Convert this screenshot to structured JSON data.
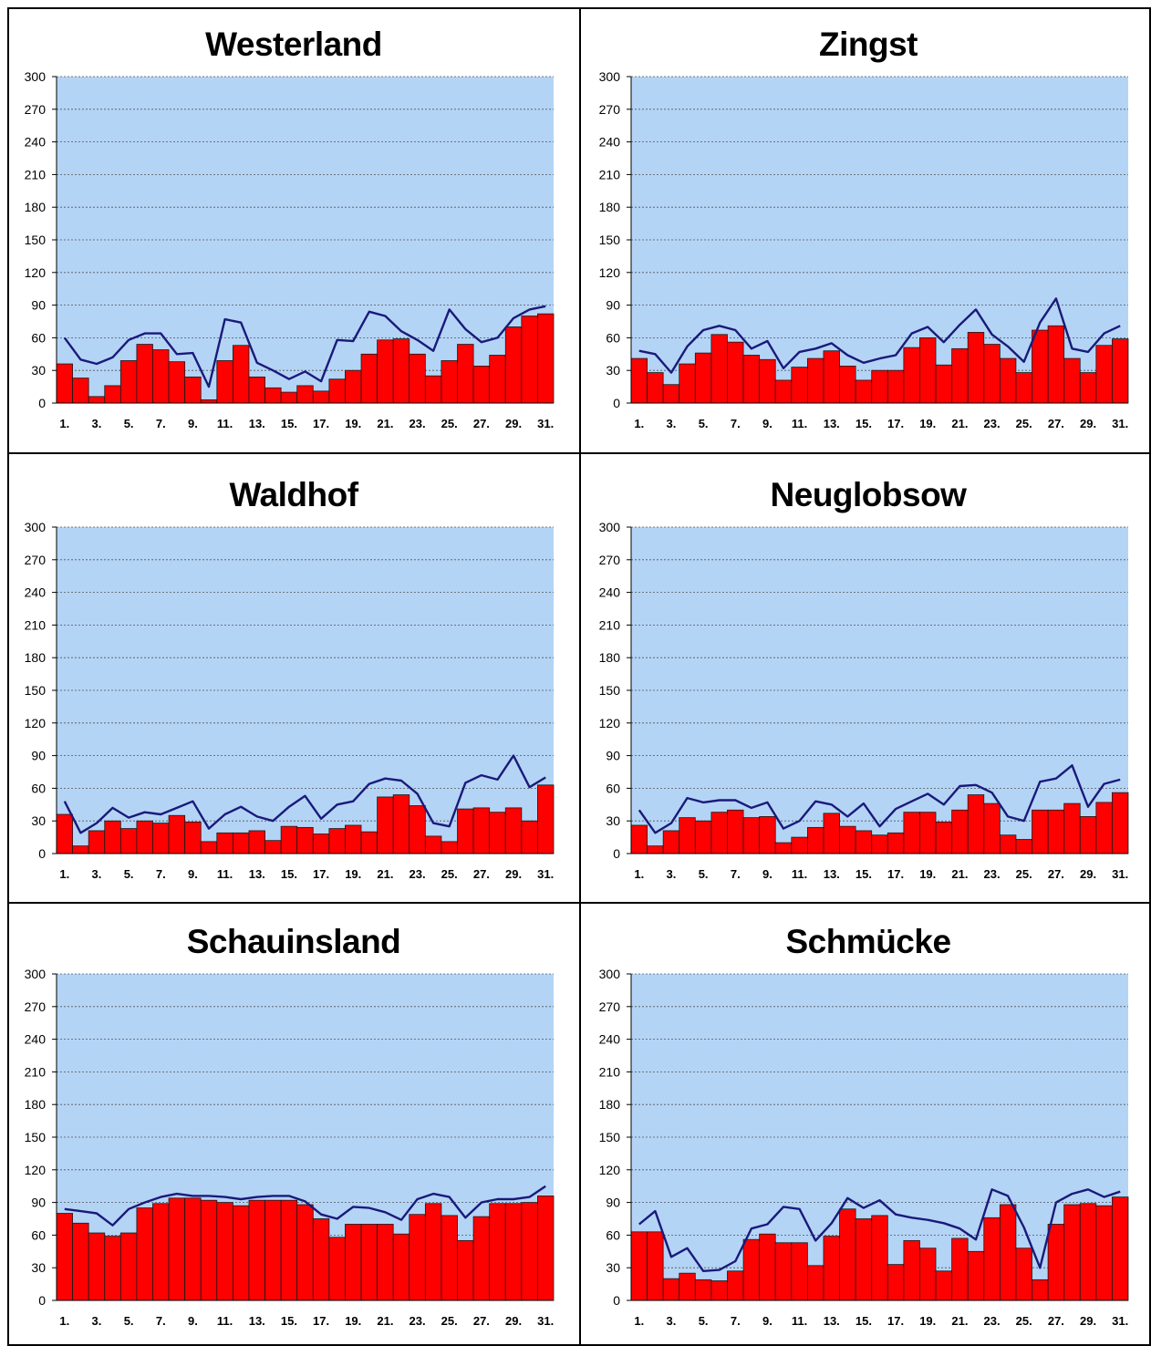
{
  "chart_data": [
    {
      "type": "bar",
      "title": "Westerland",
      "ylim": [
        0,
        300
      ],
      "yticks": [
        0,
        30,
        60,
        90,
        120,
        150,
        180,
        210,
        240,
        270,
        300
      ],
      "x_tick_labels": [
        "1.",
        "3.",
        "5.",
        "7.",
        "9.",
        "11.",
        "13.",
        "15.",
        "17.",
        "19.",
        "21.",
        "23.",
        "25.",
        "27.",
        "29.",
        "31."
      ],
      "grid": true,
      "x": [
        1,
        2,
        3,
        4,
        5,
        6,
        7,
        8,
        9,
        10,
        11,
        12,
        13,
        14,
        15,
        16,
        17,
        18,
        19,
        20,
        21,
        22,
        23,
        24,
        25,
        26,
        27,
        28,
        29,
        30,
        31
      ],
      "series": [
        {
          "type": "bar",
          "color": "#ff0000",
          "values": [
            36,
            23,
            6,
            16,
            39,
            54,
            49,
            38,
            24,
            3,
            39,
            53,
            24,
            14,
            10,
            16,
            11,
            22,
            30,
            45,
            58,
            59,
            45,
            25,
            39,
            54,
            34,
            44,
            70,
            80,
            82
          ]
        },
        {
          "type": "line",
          "color": "#1a1a7a",
          "values": [
            60,
            40,
            36,
            42,
            58,
            64,
            64,
            45,
            46,
            15,
            77,
            74,
            37,
            30,
            22,
            29,
            20,
            58,
            57,
            84,
            80,
            66,
            58,
            48,
            86,
            68,
            56,
            60,
            78,
            86,
            89
          ]
        }
      ]
    },
    {
      "type": "bar",
      "title": "Zingst",
      "ylim": [
        0,
        300
      ],
      "yticks": [
        0,
        30,
        60,
        90,
        120,
        150,
        180,
        210,
        240,
        270,
        300
      ],
      "x_tick_labels": [
        "1.",
        "3.",
        "5.",
        "7.",
        "9.",
        "11.",
        "13.",
        "15.",
        "17.",
        "19.",
        "21.",
        "23.",
        "25.",
        "27.",
        "29.",
        "31."
      ],
      "grid": true,
      "x": [
        1,
        2,
        3,
        4,
        5,
        6,
        7,
        8,
        9,
        10,
        11,
        12,
        13,
        14,
        15,
        16,
        17,
        18,
        19,
        20,
        21,
        22,
        23,
        24,
        25,
        26,
        27,
        28,
        29,
        30,
        31
      ],
      "series": [
        {
          "type": "bar",
          "color": "#ff0000",
          "values": [
            41,
            28,
            17,
            36,
            46,
            63,
            56,
            44,
            40,
            21,
            33,
            41,
            48,
            34,
            21,
            30,
            30,
            51,
            60,
            35,
            50,
            65,
            54,
            41,
            28,
            67,
            71,
            41,
            28,
            53,
            59
          ]
        },
        {
          "type": "line",
          "color": "#1a1a7a",
          "values": [
            48,
            45,
            28,
            52,
            67,
            71,
            67,
            50,
            57,
            32,
            47,
            50,
            55,
            44,
            37,
            41,
            44,
            64,
            70,
            56,
            72,
            86,
            63,
            52,
            38,
            74,
            96,
            50,
            47,
            64,
            71
          ]
        }
      ]
    },
    {
      "type": "bar",
      "title": "Waldhof",
      "ylim": [
        0,
        300
      ],
      "yticks": [
        0,
        30,
        60,
        90,
        120,
        150,
        180,
        210,
        240,
        270,
        300
      ],
      "x_tick_labels": [
        "1.",
        "3.",
        "5.",
        "7.",
        "9.",
        "11.",
        "13.",
        "15.",
        "17.",
        "19.",
        "21.",
        "23.",
        "25.",
        "27.",
        "29.",
        "31."
      ],
      "grid": true,
      "x": [
        1,
        2,
        3,
        4,
        5,
        6,
        7,
        8,
        9,
        10,
        11,
        12,
        13,
        14,
        15,
        16,
        17,
        18,
        19,
        20,
        21,
        22,
        23,
        24,
        25,
        26,
        27,
        28,
        29,
        30,
        31
      ],
      "series": [
        {
          "type": "bar",
          "color": "#ff0000",
          "values": [
            36,
            7,
            21,
            30,
            23,
            30,
            28,
            35,
            29,
            11,
            19,
            19,
            21,
            12,
            25,
            24,
            18,
            23,
            26,
            20,
            52,
            54,
            44,
            16,
            11,
            41,
            42,
            38,
            42,
            30,
            63
          ]
        },
        {
          "type": "line",
          "color": "#1a1a7a",
          "values": [
            48,
            19,
            28,
            42,
            33,
            38,
            36,
            42,
            48,
            23,
            36,
            43,
            34,
            30,
            43,
            53,
            32,
            45,
            48,
            64,
            69,
            67,
            55,
            28,
            25,
            65,
            72,
            68,
            90,
            61,
            70
          ]
        }
      ]
    },
    {
      "type": "bar",
      "title": "Neuglobsow",
      "ylim": [
        0,
        300
      ],
      "yticks": [
        0,
        30,
        60,
        90,
        120,
        150,
        180,
        210,
        240,
        270,
        300
      ],
      "x_tick_labels": [
        "1.",
        "3.",
        "5.",
        "7.",
        "9.",
        "11.",
        "13.",
        "15.",
        "17.",
        "19.",
        "21.",
        "23.",
        "25.",
        "27.",
        "29.",
        "31."
      ],
      "grid": true,
      "x": [
        1,
        2,
        3,
        4,
        5,
        6,
        7,
        8,
        9,
        10,
        11,
        12,
        13,
        14,
        15,
        16,
        17,
        18,
        19,
        20,
        21,
        22,
        23,
        24,
        25,
        26,
        27,
        28,
        29,
        30,
        31
      ],
      "series": [
        {
          "type": "bar",
          "color": "#ff0000",
          "values": [
            26,
            7,
            21,
            33,
            30,
            38,
            40,
            33,
            34,
            10,
            15,
            24,
            37,
            25,
            21,
            17,
            19,
            38,
            38,
            29,
            40,
            54,
            46,
            17,
            13,
            40,
            40,
            46,
            34,
            47,
            56
          ]
        },
        {
          "type": "line",
          "color": "#1a1a7a",
          "values": [
            40,
            19,
            28,
            51,
            47,
            49,
            49,
            42,
            47,
            23,
            30,
            48,
            45,
            34,
            46,
            25,
            41,
            48,
            55,
            45,
            62,
            63,
            56,
            34,
            30,
            66,
            69,
            81,
            43,
            64,
            68
          ]
        }
      ]
    },
    {
      "type": "bar",
      "title": "Schauinsland",
      "ylim": [
        0,
        300
      ],
      "yticks": [
        0,
        30,
        60,
        90,
        120,
        150,
        180,
        210,
        240,
        270,
        300
      ],
      "x_tick_labels": [
        "1.",
        "3.",
        "5.",
        "7.",
        "9.",
        "11.",
        "13.",
        "15.",
        "17.",
        "19.",
        "21.",
        "23.",
        "25.",
        "27.",
        "29.",
        "31."
      ],
      "grid": true,
      "x": [
        1,
        2,
        3,
        4,
        5,
        6,
        7,
        8,
        9,
        10,
        11,
        12,
        13,
        14,
        15,
        16,
        17,
        18,
        19,
        20,
        21,
        22,
        23,
        24,
        25,
        26,
        27,
        28,
        29,
        30,
        31
      ],
      "series": [
        {
          "type": "bar",
          "color": "#ff0000",
          "values": [
            80,
            71,
            62,
            59,
            62,
            85,
            89,
            94,
            94,
            92,
            90,
            87,
            92,
            92,
            92,
            88,
            75,
            58,
            70,
            70,
            70,
            61,
            79,
            89,
            78,
            55,
            77,
            89,
            89,
            90,
            96
          ]
        },
        {
          "type": "line",
          "color": "#1a1a7a",
          "values": [
            84,
            82,
            80,
            69,
            84,
            90,
            95,
            98,
            96,
            96,
            95,
            93,
            95,
            96,
            96,
            91,
            79,
            75,
            86,
            85,
            81,
            74,
            93,
            98,
            95,
            76,
            90,
            93,
            93,
            95,
            105
          ]
        }
      ]
    },
    {
      "type": "bar",
      "title": "Schmücke",
      "ylim": [
        0,
        300
      ],
      "yticks": [
        0,
        30,
        60,
        90,
        120,
        150,
        180,
        210,
        240,
        270,
        300
      ],
      "x_tick_labels": [
        "1.",
        "3.",
        "5.",
        "7.",
        "9.",
        "11.",
        "13.",
        "15.",
        "17.",
        "19.",
        "21.",
        "23.",
        "25.",
        "27.",
        "29.",
        "31."
      ],
      "grid": true,
      "x": [
        1,
        2,
        3,
        4,
        5,
        6,
        7,
        8,
        9,
        10,
        11,
        12,
        13,
        14,
        15,
        16,
        17,
        18,
        19,
        20,
        21,
        22,
        23,
        24,
        25,
        26,
        27,
        28,
        29,
        30,
        31
      ],
      "series": [
        {
          "type": "bar",
          "color": "#ff0000",
          "values": [
            63,
            63,
            20,
            25,
            19,
            18,
            27,
            56,
            61,
            53,
            53,
            32,
            59,
            84,
            75,
            78,
            33,
            55,
            48,
            27,
            57,
            45,
            76,
            88,
            48,
            19,
            70,
            88,
            89,
            87,
            95
          ]
        },
        {
          "type": "line",
          "color": "#1a1a7a",
          "values": [
            70,
            82,
            40,
            48,
            27,
            28,
            36,
            66,
            70,
            86,
            84,
            55,
            71,
            94,
            85,
            92,
            79,
            76,
            74,
            71,
            66,
            56,
            102,
            96,
            67,
            30,
            90,
            98,
            102,
            95,
            100
          ]
        }
      ]
    }
  ]
}
